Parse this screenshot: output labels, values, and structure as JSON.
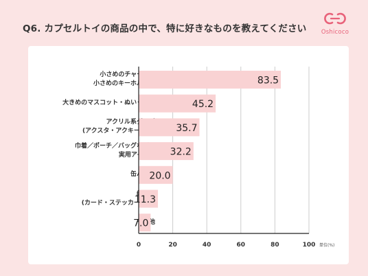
{
  "header": {
    "title": "Q6. カプセルトイの商品の中で、特に好きなものを教えてください",
    "brand": "Oshicoco"
  },
  "colors": {
    "background": "#fbe4e4",
    "bar": "#f9d2d3",
    "brand": "#e8627a",
    "axis": "#222222",
    "grid": "#cccccc"
  },
  "chart_data": {
    "type": "bar",
    "orientation": "horizontal",
    "categories": [
      [
        "小さめのチャーム・",
        "小さめのキーホルダー"
      ],
      [
        "大きめのマスコット・ぬいぐるみ"
      ],
      [
        "アクリル系グッズ",
        "(アクスタ・アクキーなど)"
      ],
      [
        "巾着／ポーチ／バッグなどの",
        "実用アイテム"
      ],
      [
        "缶バッジ"
      ],
      [
        "紙もの",
        "(カード・ステッカーなど)"
      ],
      [
        "その他"
      ]
    ],
    "values": [
      83.5,
      45.2,
      35.7,
      32.2,
      20.0,
      11.3,
      7.0
    ],
    "value_labels": [
      "83.5",
      "45.2",
      "35.7",
      "32.2",
      "20.0",
      "11.3",
      "7.0"
    ],
    "xlim": [
      0,
      100
    ],
    "xticks": [
      "0",
      "20",
      "40",
      "60",
      "80",
      "100"
    ],
    "unit_label": "単位(%)",
    "grid": true
  }
}
